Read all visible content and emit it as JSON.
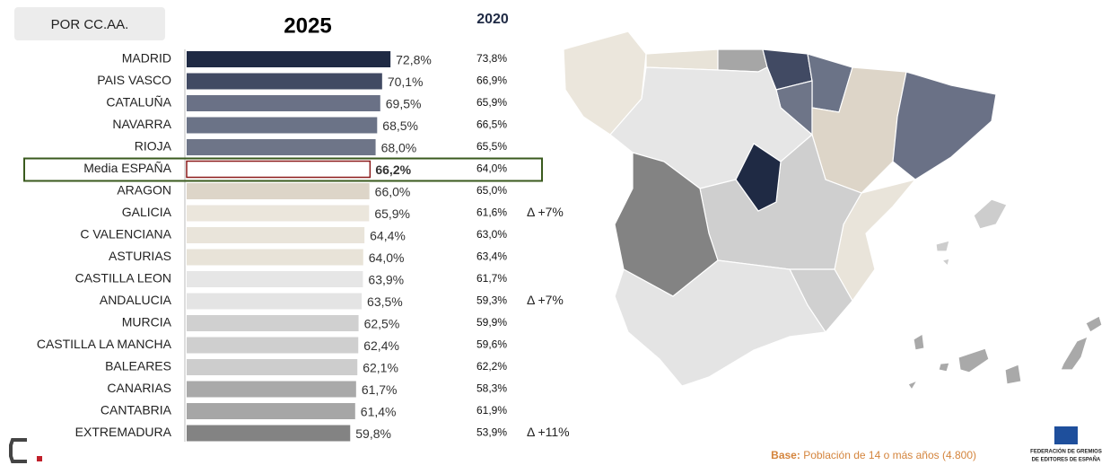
{
  "chart_data": {
    "type": "bar",
    "header": "POR CC.AA.",
    "title": "2025",
    "categories": [
      "MADRID",
      "PAIS VASCO",
      "CATALUÑA",
      "NAVARRA",
      "RIOJA",
      "Media ESPAÑA",
      "ARAGON",
      "GALICIA",
      "C VALENCIANA",
      "ASTURIAS",
      "CASTILLA LEON",
      "ANDALUCIA",
      "MURCIA",
      "CASTILLA LA MANCHA",
      "BALEARES",
      "CANARIAS",
      "CANTABRIA",
      "EXTREMADURA"
    ],
    "xlim": [
      7,
      80
    ],
    "series": [
      {
        "name": "2025",
        "values": [
          72.8,
          70.1,
          69.5,
          68.5,
          68.0,
          66.2,
          66.0,
          65.9,
          64.4,
          64.0,
          63.9,
          63.5,
          62.5,
          62.4,
          62.1,
          61.7,
          61.4,
          59.8
        ],
        "value_labels": [
          "72,8%",
          "70,1%",
          "69,5%",
          "68,5%",
          "68,0%",
          "66,2%",
          "66,0%",
          "65,9%",
          "64,4%",
          "64,0%",
          "63,9%",
          "63,5%",
          "62,5%",
          "62,4%",
          "62,1%",
          "61,7%",
          "61,4%",
          "59,8%"
        ],
        "colors": [
          "#1f2a44",
          "#414a63",
          "#6a7186",
          "#6b7387",
          "#6e7588",
          "#ffffff",
          "#ddd5c8",
          "#ebe6dc",
          "#e9e4da",
          "#e8e3d8",
          "#e6e6e6",
          "#e4e4e4",
          "#d0d0d0",
          "#cfcfcf",
          "#cdcdcd",
          "#a9a9a9",
          "#a6a6a6",
          "#838383"
        ]
      },
      {
        "name": "2020",
        "values": [
          73.8,
          66.9,
          65.9,
          66.5,
          65.5,
          64.0,
          65.0,
          61.6,
          63.0,
          63.4,
          61.7,
          59.3,
          59.9,
          59.6,
          62.2,
          58.3,
          61.9,
          53.9
        ],
        "value_labels": [
          "73,8%",
          "66,9%",
          "65,9%",
          "66,5%",
          "65,5%",
          "64,0%",
          "65,0%",
          "61,6%",
          "63,0%",
          "63,4%",
          "61,7%",
          "59,3%",
          "59,9%",
          "59,6%",
          "62,2%",
          "58,3%",
          "61,9%",
          "53,9%"
        ]
      }
    ],
    "delta_labels": [
      null,
      null,
      null,
      null,
      null,
      null,
      null,
      "Δ +7%",
      null,
      null,
      null,
      "Δ +7%",
      null,
      null,
      null,
      null,
      null,
      "Δ +11%"
    ],
    "highlight_outline": "#8b1a1a",
    "highlight_box": "#3a5a1e",
    "footnote": {
      "label": "Base:",
      "text": "Población de 14 o más años (4.800)"
    },
    "logo_text": [
      "FEDERACIÓN DE GREMIOS",
      "DE EDITORES DE ESPAÑA"
    ]
  }
}
